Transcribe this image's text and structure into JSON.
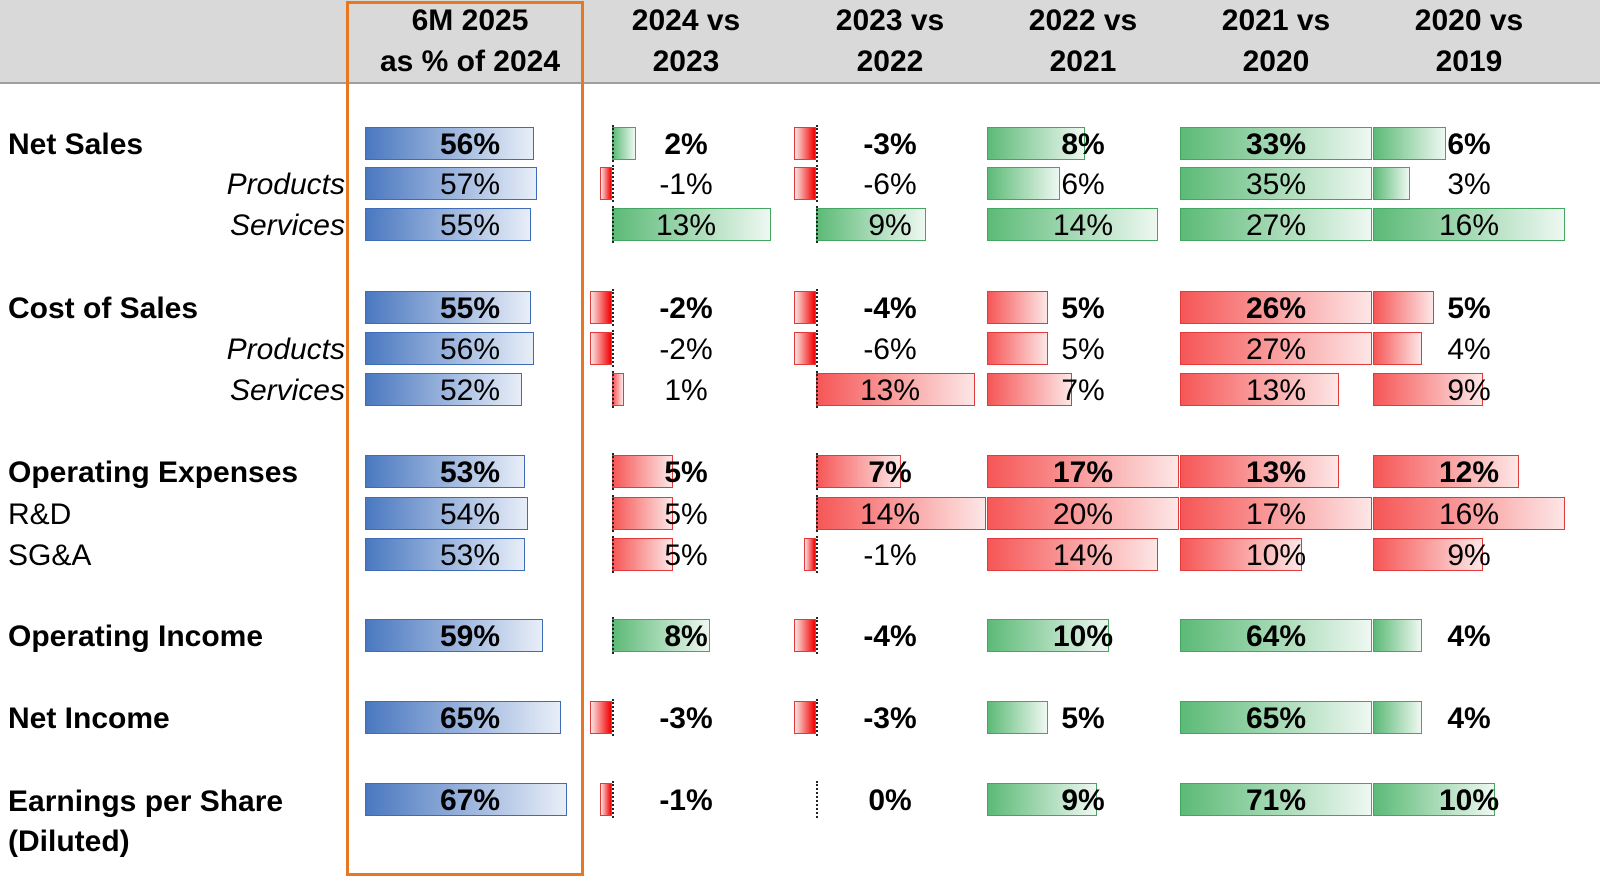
{
  "headers": [
    "",
    [
      "6M 2025",
      "as % of 2024"
    ],
    [
      "2024 vs",
      "2023"
    ],
    [
      "2023 vs",
      "2022"
    ],
    [
      "2022 vs",
      "2021"
    ],
    [
      "2021 vs",
      "2020"
    ],
    [
      "2020 vs",
      "2019"
    ]
  ],
  "colors": {
    "share": "#4a78c0",
    "increase_revenue": "#5cba77",
    "increase_cost": "#f65656",
    "decrease": "#f20000",
    "highlight_border": "#e87722",
    "header_band": "#d9d9d9"
  },
  "chart_data": {
    "type": "table",
    "columns": [
      "6M 2025 as % of 2024",
      "2024 vs 2023",
      "2023 vs 2022",
      "2022 vs 2021",
      "2021 vs 2020",
      "2020 vs 2019"
    ],
    "rows": [
      {
        "label": "Net Sales",
        "style": "bold",
        "kind": "revenue",
        "values": [
          56,
          2,
          -3,
          8,
          33,
          6
        ],
        "labels": [
          "56%",
          "2%",
          "-3%",
          "8%",
          "33%",
          "6%"
        ]
      },
      {
        "label": "Products",
        "style": "italic",
        "kind": "revenue",
        "values": [
          57,
          -1,
          -6,
          6,
          35,
          3
        ],
        "labels": [
          "57%",
          "-1%",
          "-6%",
          "6%",
          "35%",
          "3%"
        ]
      },
      {
        "label": "Services",
        "style": "italic",
        "kind": "revenue",
        "values": [
          55,
          13,
          9,
          14,
          27,
          16
        ],
        "labels": [
          "55%",
          "13%",
          "9%",
          "14%",
          "27%",
          "16%"
        ]
      },
      {
        "label": "Cost of Sales",
        "style": "bold",
        "kind": "cost",
        "values": [
          55,
          -2,
          -4,
          5,
          26,
          5
        ],
        "labels": [
          "55%",
          "-2%",
          "-4%",
          "5%",
          "26%",
          "5%"
        ]
      },
      {
        "label": "Products",
        "style": "italic",
        "kind": "cost",
        "values": [
          56,
          -2,
          -6,
          5,
          27,
          4
        ],
        "labels": [
          "56%",
          "-2%",
          "-6%",
          "5%",
          "27%",
          "4%"
        ]
      },
      {
        "label": "Services",
        "style": "italic",
        "kind": "cost",
        "values": [
          52,
          1,
          13,
          7,
          13,
          9
        ],
        "labels": [
          "52%",
          "1%",
          "13%",
          "7%",
          "13%",
          "9%"
        ]
      },
      {
        "label": "Operating Expenses",
        "style": "bold",
        "kind": "cost",
        "values": [
          53,
          5,
          7,
          17,
          13,
          12
        ],
        "labels": [
          "53%",
          "5%",
          "7%",
          "17%",
          "13%",
          "12%"
        ]
      },
      {
        "label": "R&D",
        "style": "plain",
        "kind": "cost",
        "values": [
          54,
          5,
          14,
          20,
          17,
          16
        ],
        "labels": [
          "54%",
          "5%",
          "14%",
          "20%",
          "17%",
          "16%"
        ]
      },
      {
        "label": "SG&A",
        "style": "plain",
        "kind": "cost",
        "values": [
          53,
          5,
          -1,
          14,
          10,
          9
        ],
        "labels": [
          "53%",
          "5%",
          "-1%",
          "14%",
          "10%",
          "9%"
        ]
      },
      {
        "label": "Operating Income",
        "style": "bold",
        "kind": "revenue",
        "values": [
          59,
          8,
          -4,
          10,
          64,
          4
        ],
        "labels": [
          "59%",
          "8%",
          "-4%",
          "10%",
          "64%",
          "4%"
        ]
      },
      {
        "label": "Net Income",
        "style": "bold",
        "kind": "revenue",
        "values": [
          65,
          -3,
          -3,
          5,
          65,
          4
        ],
        "labels": [
          "65%",
          "-3%",
          "-3%",
          "5%",
          "65%",
          "4%"
        ]
      },
      {
        "label": [
          "Earnings per Share",
          "(Diluted)"
        ],
        "style": "bold",
        "kind": "revenue",
        "values": [
          67,
          -1,
          0,
          9,
          71,
          10
        ],
        "labels": [
          "67%",
          "-1%",
          "0%",
          "9%",
          "71%",
          "10%"
        ]
      }
    ]
  }
}
